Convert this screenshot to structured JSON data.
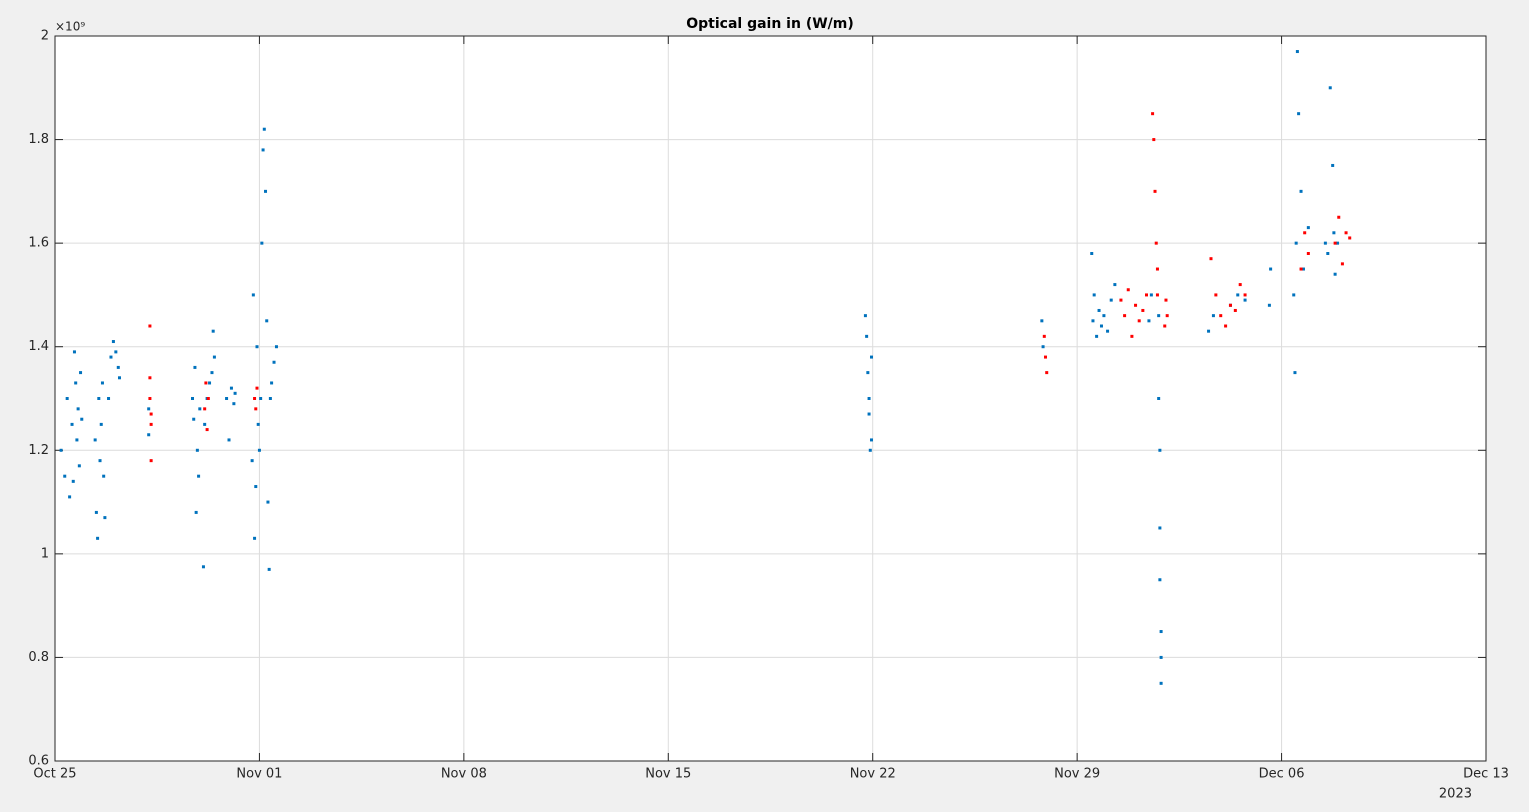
{
  "chart_data": {
    "type": "scatter",
    "title": "Optical gain in (W/m)",
    "xlim": [
      "2023-10-25",
      "2023-12-13"
    ],
    "xticks": [
      {
        "value": "2023-10-25",
        "label": "Oct 25"
      },
      {
        "value": "2023-11-01",
        "label": "Nov 01"
      },
      {
        "value": "2023-11-08",
        "label": "Nov 08"
      },
      {
        "value": "2023-11-15",
        "label": "Nov 15"
      },
      {
        "value": "2023-11-22",
        "label": "Nov 22"
      },
      {
        "value": "2023-11-29",
        "label": "Nov 29"
      },
      {
        "value": "2023-12-06",
        "label": "Dec 06"
      },
      {
        "value": "2023-12-13",
        "label": "Dec 13"
      }
    ],
    "x_year_label": "2023",
    "ylim": [
      600000000,
      2000000000
    ],
    "yticks": [
      {
        "value": 600000000,
        "label": "0.6"
      },
      {
        "value": 800000000,
        "label": "0.8"
      },
      {
        "value": 1000000000,
        "label": "1"
      },
      {
        "value": 1200000000,
        "label": "1.2"
      },
      {
        "value": 1400000000,
        "label": "1.4"
      },
      {
        "value": 1600000000,
        "label": "1.6"
      },
      {
        "value": 1800000000,
        "label": "1.8"
      },
      {
        "value": 2000000000,
        "label": "2"
      }
    ],
    "y_exponent_label": "×10⁹",
    "grid": true,
    "series": [
      {
        "color": "#0072bd",
        "x": [
          "2023-10-25T05:00",
          "2023-10-25T08:00",
          "2023-10-25T10:00",
          "2023-10-25T12:00",
          "2023-10-25T14:00",
          "2023-10-25T15:00",
          "2023-10-25T16:00",
          "2023-10-25T17:00",
          "2023-10-25T18:00",
          "2023-10-25T19:00",
          "2023-10-25T20:00",
          "2023-10-25T21:00",
          "2023-10-25T22:00",
          "2023-10-26T09:00",
          "2023-10-26T10:00",
          "2023-10-26T11:00",
          "2023-10-26T12:00",
          "2023-10-26T13:00",
          "2023-10-26T14:00",
          "2023-10-26T15:00",
          "2023-10-26T16:00",
          "2023-10-26T17:00",
          "2023-10-26T20:00",
          "2023-10-26T22:00",
          "2023-10-27T00:00",
          "2023-10-27T02:00",
          "2023-10-27T04:00",
          "2023-10-27T05:00",
          "2023-10-28T05:00",
          "2023-10-28T05:00",
          "2023-10-29T17:00",
          "2023-10-29T18:00",
          "2023-10-29T19:00",
          "2023-10-29T20:00",
          "2023-10-29T21:00",
          "2023-10-29T22:00",
          "2023-10-29T23:00",
          "2023-10-30T02:00",
          "2023-10-30T03:00",
          "2023-10-30T05:00",
          "2023-10-30T07:00",
          "2023-10-30T09:00",
          "2023-10-30T10:00",
          "2023-10-30T11:00",
          "2023-10-30T21:00",
          "2023-10-30T23:00",
          "2023-10-31T01:00",
          "2023-10-31T03:00",
          "2023-10-31T04:00",
          "2023-10-31T18:00",
          "2023-10-31T19:00",
          "2023-10-31T20:00",
          "2023-10-31T21:00",
          "2023-10-31T22:00",
          "2023-10-31T23:00",
          "2023-11-01T00:00",
          "2023-11-01T01:00",
          "2023-11-01T02:00",
          "2023-11-01T03:00",
          "2023-11-01T04:00",
          "2023-11-01T05:00",
          "2023-11-01T06:00",
          "2023-11-01T07:00",
          "2023-11-01T08:00",
          "2023-11-01T09:00",
          "2023-11-01T10:00",
          "2023-11-01T12:00",
          "2023-11-01T14:00",
          "2023-11-21T18:00",
          "2023-11-21T19:00",
          "2023-11-21T20:00",
          "2023-11-21T21:00",
          "2023-11-21T21:00",
          "2023-11-21T22:00",
          "2023-11-21T23:00",
          "2023-11-21T23:00",
          "2023-11-27T19:00",
          "2023-11-27T20:00",
          "2023-11-29T12:00",
          "2023-11-29T13:00",
          "2023-11-29T14:00",
          "2023-11-29T16:00",
          "2023-11-29T18:00",
          "2023-11-29T20:00",
          "2023-11-29T22:00",
          "2023-11-30T01:00",
          "2023-11-30T04:00",
          "2023-11-30T07:00",
          "2023-12-01T11:00",
          "2023-12-01T13:00",
          "2023-12-01T19:00",
          "2023-12-01T19:00",
          "2023-12-01T20:00",
          "2023-12-01T20:00",
          "2023-12-01T20:00",
          "2023-12-01T21:00",
          "2023-12-01T21:00",
          "2023-12-01T21:00",
          "2023-12-03T12:00",
          "2023-12-03T16:00",
          "2023-12-04T06:00",
          "2023-12-04T12:00",
          "2023-12-04T18:00",
          "2023-12-05T14:00",
          "2023-12-05T15:00",
          "2023-12-06T10:00",
          "2023-12-06T11:00",
          "2023-12-06T12:00",
          "2023-12-06T13:00",
          "2023-12-06T14:00",
          "2023-12-06T16:00",
          "2023-12-06T18:00",
          "2023-12-06T22:00",
          "2023-12-07T12:00",
          "2023-12-07T14:00",
          "2023-12-07T16:00",
          "2023-12-07T18:00",
          "2023-12-07T19:00",
          "2023-12-07T20:00",
          "2023-12-07T22:00"
        ],
        "values": [
          1200000000.0,
          1150000000.0,
          1300000000.0,
          1110000000.0,
          1250000000.0,
          1140000000.0,
          1390000000.0,
          1330000000.0,
          1220000000.0,
          1280000000.0,
          1170000000.0,
          1350000000.0,
          1260000000.0,
          1220000000.0,
          1080000000.0,
          1030000000.0,
          1300000000.0,
          1180000000.0,
          1250000000.0,
          1330000000.0,
          1150000000.0,
          1070000000.0,
          1300000000.0,
          1380000000.0,
          1410000000.0,
          1390000000.0,
          1360000000.0,
          1340000000.0,
          1230000000.0,
          1280000000.0,
          1300000000.0,
          1260000000.0,
          1360000000.0,
          1080000000.0,
          1200000000.0,
          1150000000.0,
          1280000000.0,
          975000000.0,
          1250000000.0,
          1300000000.0,
          1330000000.0,
          1350000000.0,
          1430000000.0,
          1380000000.0,
          1300000000.0,
          1220000000.0,
          1320000000.0,
          1290000000.0,
          1310000000.0,
          1180000000.0,
          1500000000.0,
          1030000000.0,
          1130000000.0,
          1400000000.0,
          1250000000.0,
          1200000000.0,
          1300000000.0,
          1600000000.0,
          1780000000.0,
          1820000000.0,
          1700000000.0,
          1450000000.0,
          1100000000.0,
          970000000.0,
          1300000000.0,
          1330000000.0,
          1370000000.0,
          1400000000.0,
          1460000000.0,
          1420000000.0,
          1350000000.0,
          1300000000.0,
          1270000000.0,
          1200000000.0,
          1220000000.0,
          1380000000.0,
          1450000000.0,
          1400000000.0,
          1580000000.0,
          1450000000.0,
          1500000000.0,
          1420000000.0,
          1470000000.0,
          1440000000.0,
          1460000000.0,
          1430000000.0,
          1490000000.0,
          1520000000.0,
          1450000000.0,
          1500000000.0,
          1460000000.0,
          1300000000.0,
          1200000000.0,
          1050000000.0,
          950000000.0,
          850000000.0,
          800000000.0,
          750000000.0,
          1430000000.0,
          1460000000.0,
          1480000000.0,
          1500000000.0,
          1490000000.0,
          1480000000.0,
          1550000000.0,
          1500000000.0,
          1350000000.0,
          1600000000.0,
          1970000000.0,
          1850000000.0,
          1700000000.0,
          1550000000.0,
          1630000000.0,
          1600000000.0,
          1580000000.0,
          1900000000.0,
          1750000000.0,
          1620000000.0,
          1540000000.0,
          1600000000.0
        ]
      },
      {
        "color": "#ff0000",
        "x": [
          "2023-10-28T06:00",
          "2023-10-28T06:00",
          "2023-10-28T06:00",
          "2023-10-28T07:00",
          "2023-10-28T07:00",
          "2023-10-28T07:00",
          "2023-10-30T03:00",
          "2023-10-30T04:00",
          "2023-10-30T05:00",
          "2023-10-30T06:00",
          "2023-10-31T20:00",
          "2023-10-31T21:00",
          "2023-10-31T22:00",
          "2023-11-27T21:00",
          "2023-11-27T22:00",
          "2023-11-27T23:00",
          "2023-11-30T12:00",
          "2023-11-30T15:00",
          "2023-11-30T18:00",
          "2023-11-30T21:00",
          "2023-12-01T00:00",
          "2023-12-01T03:00",
          "2023-12-01T06:00",
          "2023-12-01T09:00",
          "2023-12-01T14:00",
          "2023-12-01T15:00",
          "2023-12-01T16:00",
          "2023-12-01T17:00",
          "2023-12-01T18:00",
          "2023-12-01T18:00",
          "2023-12-02T00:00",
          "2023-12-02T01:00",
          "2023-12-02T02:00",
          "2023-12-03T14:00",
          "2023-12-03T18:00",
          "2023-12-03T22:00",
          "2023-12-04T02:00",
          "2023-12-04T06:00",
          "2023-12-04T10:00",
          "2023-12-04T14:00",
          "2023-12-04T18:00",
          "2023-12-06T16:00",
          "2023-12-06T19:00",
          "2023-12-06T22:00",
          "2023-12-07T20:00",
          "2023-12-07T23:00",
          "2023-12-08T02:00",
          "2023-12-08T05:00",
          "2023-12-08T08:00"
        ],
        "values": [
          1440000000.0,
          1340000000.0,
          1300000000.0,
          1270000000.0,
          1250000000.0,
          1180000000.0,
          1280000000.0,
          1330000000.0,
          1240000000.0,
          1300000000.0,
          1300000000.0,
          1280000000.0,
          1320000000.0,
          1420000000.0,
          1380000000.0,
          1350000000.0,
          1490000000.0,
          1460000000.0,
          1510000000.0,
          1420000000.0,
          1480000000.0,
          1450000000.0,
          1470000000.0,
          1500000000.0,
          1850000000.0,
          1800000000.0,
          1700000000.0,
          1600000000.0,
          1550000000.0,
          1500000000.0,
          1440000000.0,
          1490000000.0,
          1460000000.0,
          1570000000.0,
          1500000000.0,
          1460000000.0,
          1440000000.0,
          1480000000.0,
          1470000000.0,
          1520000000.0,
          1500000000.0,
          1550000000.0,
          1620000000.0,
          1580000000.0,
          1600000000.0,
          1650000000.0,
          1560000000.0,
          1620000000.0,
          1610000000.0
        ]
      }
    ]
  }
}
